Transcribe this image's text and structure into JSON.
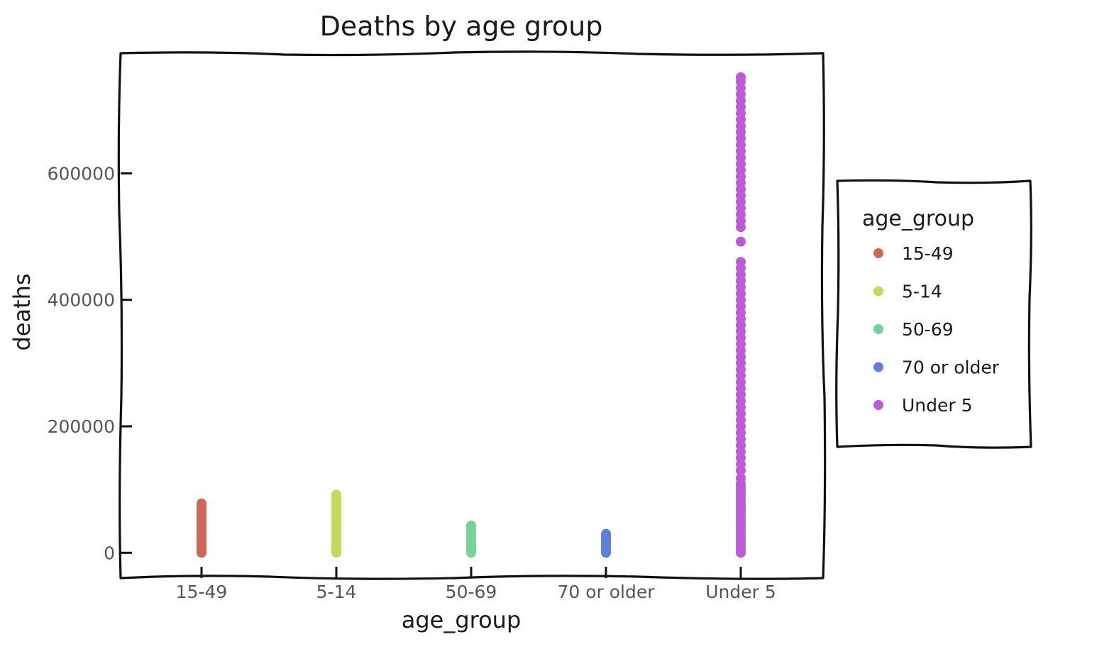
{
  "chart_data": {
    "type": "scatter",
    "title": "Deaths by age group",
    "xlabel": "age_group",
    "ylabel": "deaths",
    "categories": [
      "15-49",
      "5-14",
      "50-69",
      "70 or older",
      "Under 5"
    ],
    "y_ticks": [
      0,
      200000,
      400000,
      600000
    ],
    "ylim": [
      -40000,
      790000
    ],
    "grid": false,
    "legend": {
      "title": "age_group",
      "placement": "right"
    },
    "series": [
      {
        "name": "15-49",
        "color": "#d0665a",
        "values": [
          0,
          3000,
          6000,
          9000,
          12000,
          15000,
          18000,
          21000,
          24000,
          27000,
          30000,
          34000,
          38000,
          42000,
          46000,
          50000,
          54000,
          58000,
          62000,
          66000,
          70000,
          74000,
          78000
        ]
      },
      {
        "name": "5-14",
        "color": "#c2d95e",
        "values": [
          0,
          3000,
          6000,
          9000,
          12000,
          15000,
          18000,
          21000,
          24000,
          27000,
          30000,
          33000,
          36000,
          40000,
          44000,
          48000,
          52000,
          56000,
          60000,
          64000,
          68000,
          72000,
          76000,
          80000,
          84000,
          88000,
          92000
        ]
      },
      {
        "name": "50-69",
        "color": "#77d296",
        "values": [
          0,
          3000,
          6000,
          9000,
          12000,
          15000,
          18000,
          22000,
          26000,
          30000,
          34000,
          38000,
          43000
        ]
      },
      {
        "name": "70 or older",
        "color": "#5f80d9",
        "values": [
          0,
          3000,
          6000,
          9000,
          12000,
          15000,
          18000,
          21000,
          24000,
          27000,
          30000
        ]
      },
      {
        "name": "Under 5",
        "color": "#bd5ad6",
        "values": [
          0,
          5000,
          10000,
          15000,
          20000,
          25000,
          30000,
          35000,
          40000,
          45000,
          50000,
          55000,
          60000,
          65000,
          70000,
          75000,
          80000,
          85000,
          90000,
          95000,
          100000,
          105000,
          110000,
          118000,
          130000,
          140000,
          150000,
          160000,
          170000,
          180000,
          190000,
          200000,
          210000,
          220000,
          230000,
          240000,
          250000,
          260000,
          270000,
          280000,
          290000,
          300000,
          310000,
          320000,
          330000,
          340000,
          350000,
          360000,
          370000,
          380000,
          390000,
          400000,
          410000,
          420000,
          430000,
          440000,
          450000,
          460000,
          492000,
          515000,
          525000,
          535000,
          545000,
          555000,
          565000,
          575000,
          585000,
          595000,
          605000,
          615000,
          625000,
          635000,
          645000,
          655000,
          665000,
          675000,
          685000,
          695000,
          705000,
          715000,
          725000,
          735000,
          745000,
          752000
        ]
      }
    ]
  }
}
